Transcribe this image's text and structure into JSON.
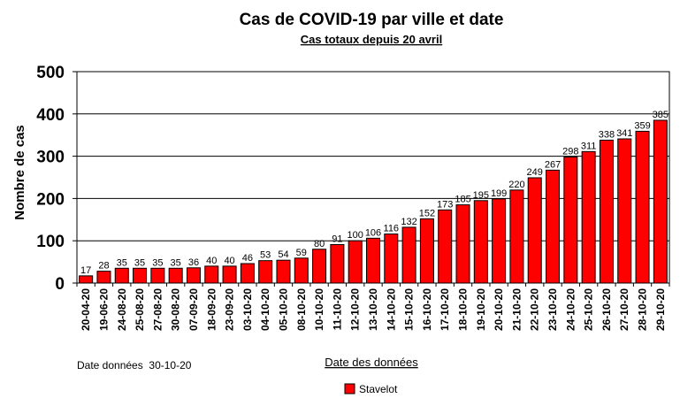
{
  "chart_data": {
    "type": "bar",
    "title": "Cas de COVID-19 par ville et date",
    "subtitle": "Cas totaux depuis 20 avril",
    "xlabel": "Date des données",
    "ylabel": "Nombre de cas",
    "ylim": [
      0,
      500
    ],
    "yticks": [
      "0",
      "100",
      "200",
      "300",
      "400",
      "500"
    ],
    "grid": true,
    "legend_position": "bottom",
    "footnote": "Date données  30-10-20",
    "categories": [
      "20-04-20",
      "19-06-20",
      "24-08-20",
      "25-08-20",
      "27-08-20",
      "30-08-20",
      "07-09-20",
      "18-09-20",
      "23-09-20",
      "03-10-20",
      "04-10-20",
      "05-10-20",
      "08-10-20",
      "10-10-20",
      "11-10-20",
      "12-10-20",
      "13-10-20",
      "14-10-20",
      "15-10-20",
      "16-10-20",
      "17-10-20",
      "18-10-20",
      "19-10-20",
      "20-10-20",
      "21-10-20",
      "22-10-20",
      "23-10-20",
      "24-10-20",
      "25-10-20",
      "26-10-20",
      "27-10-20",
      "28-10-20",
      "29-10-20"
    ],
    "series": [
      {
        "name": "Stavelot",
        "color": "#ff0000",
        "values": [
          17,
          28,
          35,
          35,
          35,
          35,
          36,
          40,
          40,
          46,
          53,
          54,
          59,
          80,
          91,
          100,
          106,
          116,
          132,
          152,
          173,
          185,
          195,
          199,
          220,
          249,
          267,
          298,
          311,
          338,
          341,
          359,
          385
        ]
      }
    ]
  }
}
